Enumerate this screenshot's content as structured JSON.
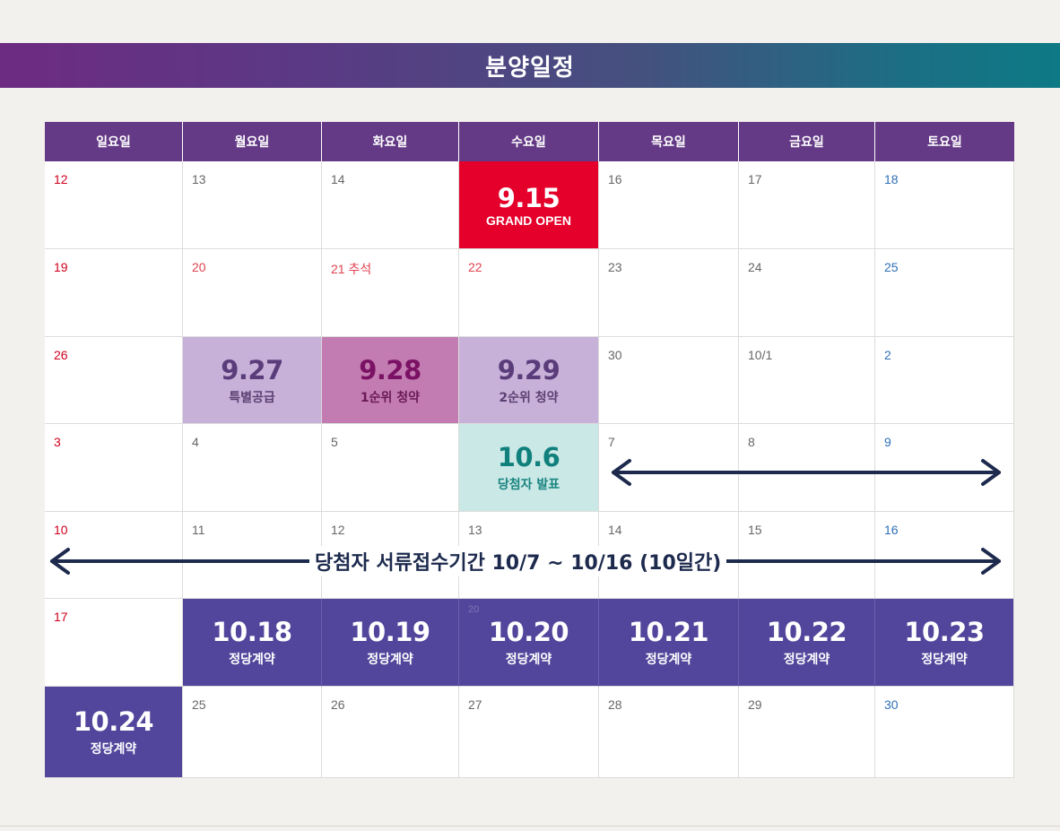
{
  "banner": {
    "title": "분양일정"
  },
  "calendar": {
    "weekdays": [
      "일요일",
      "월요일",
      "화요일",
      "수요일",
      "목요일",
      "금요일",
      "토요일"
    ],
    "days": {
      "r0": [
        "12",
        "13",
        "14",
        "",
        "16",
        "17",
        "18"
      ],
      "r1": [
        "19",
        "20",
        "21 추석",
        "22",
        "23",
        "24",
        "25"
      ],
      "r2": [
        "26",
        "",
        "",
        "",
        "30",
        "10/1",
        "2"
      ],
      "r3": [
        "3",
        "4",
        "5",
        "",
        "7",
        "8",
        "9"
      ],
      "r4": [
        "10",
        "11",
        "12",
        "13",
        "14",
        "15",
        "16"
      ],
      "r5": [
        "17",
        "",
        "",
        "",
        "",
        "",
        ""
      ],
      "r6": [
        "",
        "25",
        "26",
        "27",
        "28",
        "29",
        "30"
      ]
    },
    "events": {
      "grand_open": {
        "date": "9.15",
        "label": "GRAND OPEN"
      },
      "special_supply": {
        "date": "9.27",
        "label": "특별공급"
      },
      "first_priority": {
        "date": "9.28",
        "label": "1순위 청약"
      },
      "second_priority": {
        "date": "9.29",
        "label": "2순위 청약"
      },
      "winner_announce": {
        "date": "10.6",
        "label": "당첨자 발표"
      },
      "contracts": [
        {
          "date": "10.18",
          "label": "정당계약"
        },
        {
          "date": "10.19",
          "label": "정당계약"
        },
        {
          "date": "10.20",
          "label": "정당계약"
        },
        {
          "date": "10.21",
          "label": "정당계약"
        },
        {
          "date": "10.22",
          "label": "정당계약"
        },
        {
          "date": "10.23",
          "label": "정당계약"
        },
        {
          "date": "10.24",
          "label": "정당계약"
        }
      ]
    },
    "document_period": "당첨자 서류접수기간 10/7 ~ 10/16 (10일간)"
  },
  "colors": {
    "header": "#643a86",
    "grand_open": "#e4002b",
    "special_supply_bg": "#c7b1d9",
    "first_priority_bg": "#c27cb1",
    "winner_bg": "#c9e8e6",
    "contract_bg": "#52469c",
    "arrow": "#1d2a4d"
  }
}
